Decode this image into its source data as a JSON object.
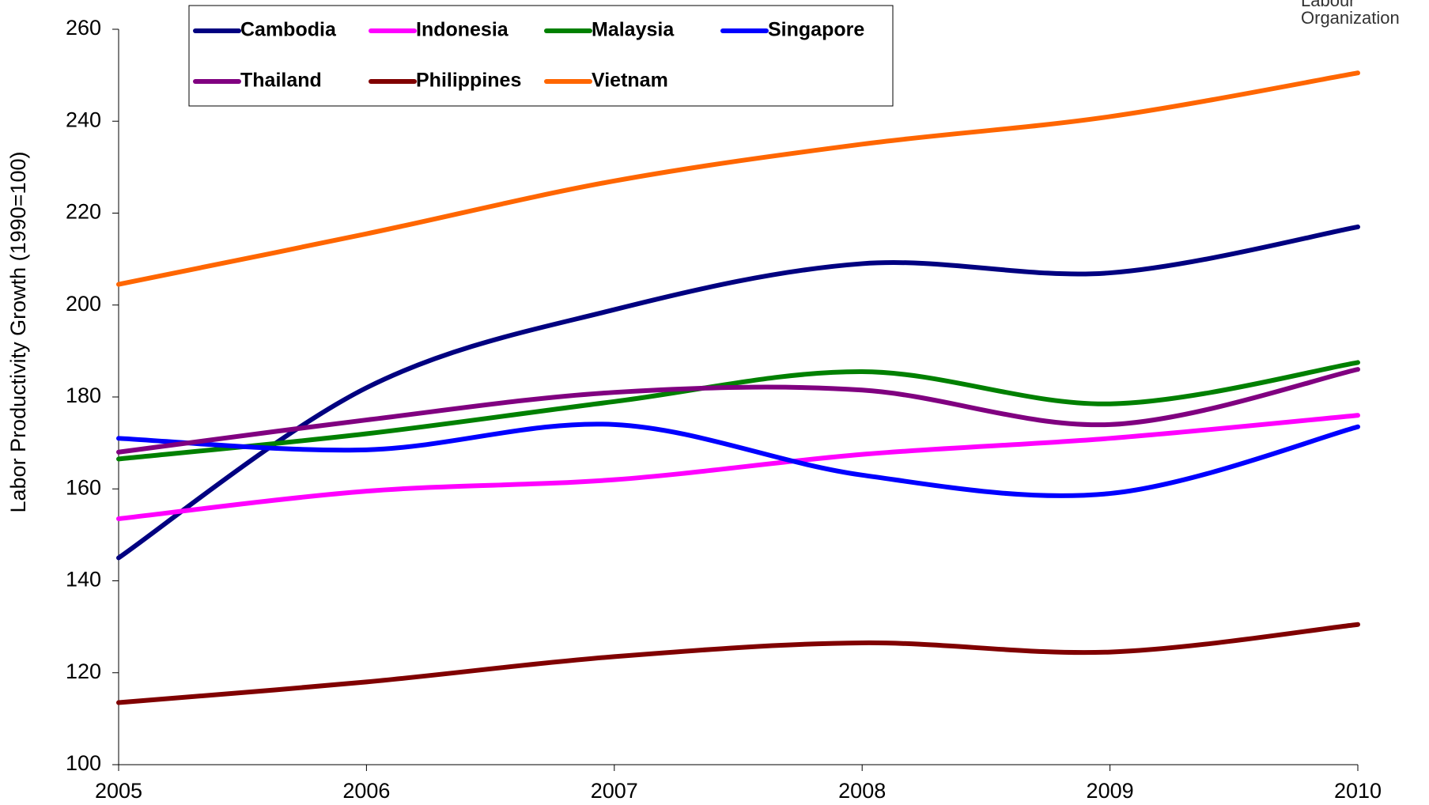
{
  "chart_data": {
    "type": "line",
    "ylabel": "Labor Productivity Growth (1990=100)",
    "logo_text": [
      "Labour",
      "Organization"
    ],
    "x": [
      2005,
      2006,
      2007,
      2008,
      2009,
      2010
    ],
    "xlim": [
      2005,
      2010
    ],
    "xticks": [
      2005,
      2006,
      2007,
      2008,
      2009,
      2010
    ],
    "ylim": [
      100,
      260
    ],
    "yticks": [
      100,
      120,
      140,
      160,
      180,
      200,
      220,
      240,
      260
    ],
    "grid": false,
    "smooth": true,
    "series": [
      {
        "name": "Cambodia",
        "color": "#000080",
        "values": [
          145,
          182,
          199,
          209,
          207,
          217
        ]
      },
      {
        "name": "Indonesia",
        "color": "#ff00ff",
        "values": [
          153.5,
          159.5,
          162,
          167.5,
          171,
          176
        ]
      },
      {
        "name": "Malaysia",
        "color": "#008000",
        "values": [
          166.5,
          172,
          179,
          185.5,
          178.5,
          187.5
        ]
      },
      {
        "name": "Singapore",
        "color": "#0000ff",
        "values": [
          171,
          168.5,
          174,
          163,
          159,
          173.5
        ]
      },
      {
        "name": "Thailand",
        "color": "#800080",
        "values": [
          168,
          175,
          181,
          181.5,
          174,
          186
        ]
      },
      {
        "name": "Philippines",
        "color": "#800000",
        "values": [
          113.5,
          118,
          123.5,
          126.5,
          124.5,
          130.5
        ]
      },
      {
        "name": "Vietnam",
        "color": "#ff6600",
        "values": [
          204.5,
          215.5,
          227,
          235,
          241,
          250.5
        ]
      }
    ]
  }
}
